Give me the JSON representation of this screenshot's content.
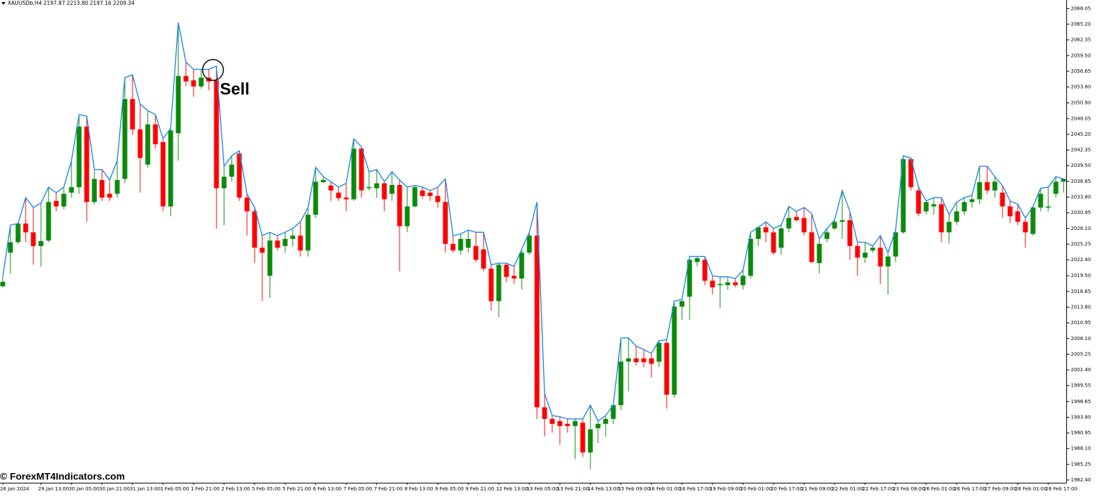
{
  "chart_data": {
    "type": "candlestick",
    "header": "XAUUSDb,H4  2197.87 2213.80 2197.16 2209.34",
    "annotation": "Sell",
    "watermark": "© ForexMT4Indicators.com",
    "up_color": "#0b8a0b",
    "down_color": "#ff0000",
    "line_color": "#1e88e5",
    "ylim": [
      1981.9,
      2069.6
    ],
    "yticks": [
      2068.05,
      {
        "value": 2065.2,
        "label": "2065.20"
      },
      2062.35,
      {
        "value": 2059.5,
        "label": "2059.50"
      },
      2056.65,
      {
        "value": 2053.8,
        "label": "2053.80"
      },
      {
        "value": 2050.9,
        "label": "2050.90"
      },
      2048.05,
      {
        "value": 2045.2,
        "label": "2045.20"
      },
      2042.35,
      {
        "value": 2039.5,
        "label": "2039.50"
      },
      2036.65,
      {
        "value": 2033.8,
        "label": "2033.80"
      },
      2030.95,
      {
        "value": 2028.1,
        "label": "2028.10"
      },
      2025.25,
      {
        "value": 2022.4,
        "label": "2022.40"
      },
      {
        "value": 2019.5,
        "label": "2019.50"
      },
      2016.65,
      {
        "value": 2013.8,
        "label": "2013.80"
      },
      2010.95,
      {
        "value": 2008.1,
        "label": "2008.10"
      },
      2005.25,
      {
        "value": 2002.4,
        "label": "2002.40"
      },
      1999.55,
      1996.65,
      {
        "value": 1993.8,
        "label": "1993.80"
      },
      1990.95,
      {
        "value": 1988.1,
        "label": "1988.10"
      },
      1985.25,
      {
        "value": 1982.4,
        "label": "1982.40"
      }
    ],
    "categories": [
      "26 Jan 2024",
      null,
      null,
      null,
      null,
      "29 Jan 13:00",
      null,
      null,
      null,
      "30 Jan 05:00",
      null,
      null,
      null,
      "30 Jan 21:00",
      null,
      null,
      null,
      "31 Jan 13:00",
      null,
      null,
      null,
      "1 Feb 05:00",
      null,
      null,
      null,
      "1 Feb 21:00",
      null,
      null,
      null,
      "2 Feb 13:00",
      null,
      null,
      null,
      "5 Feb 05:00",
      null,
      null,
      null,
      "5 Feb 21:00",
      null,
      null,
      null,
      "6 Feb 13:00",
      null,
      null,
      null,
      "7 Feb 05:00",
      null,
      null,
      null,
      "7 Feb 21:00",
      null,
      null,
      null,
      "8 Feb 13:00",
      null,
      null,
      null,
      "9 Feb 05:00",
      null,
      null,
      null,
      "9 Feb 21:00",
      null,
      null,
      null,
      "12 Feb 13:00",
      null,
      null,
      null,
      "13 Feb 05:00",
      null,
      null,
      null,
      "13 Feb 21:00",
      null,
      null,
      null,
      "14 Feb 13:00",
      null,
      null,
      null,
      "15 Feb 09:00",
      null,
      null,
      null,
      "16 Feb 01:00",
      null,
      null,
      null,
      "16 Feb 17:00",
      null,
      null,
      null,
      "19 Feb 09:00",
      null,
      null,
      null,
      "20 Feb 01:00",
      null,
      null,
      null,
      "20 Feb 17:00",
      null,
      null,
      null,
      "21 Feb 09:00",
      null,
      null,
      null,
      "22 Feb 01:00",
      null,
      null,
      null,
      "22 Feb 17:00",
      null,
      null,
      null,
      "23 Feb 09:00",
      null,
      null,
      null,
      "26 Feb 01:00",
      null,
      null,
      null,
      "26 Feb 17:00",
      null,
      null,
      null,
      "27 Feb 09:00",
      null,
      null,
      null,
      "28 Feb 01:00",
      null,
      null,
      null,
      "28 Feb 17:00",
      null,
      null
    ],
    "open": [
      2017.6,
      2023.7,
      2025.6,
      2029.0,
      2027.4,
      2024.9,
      2025.9,
      2033.1,
      2032.1,
      2034.6,
      2035.6,
      2046.6,
      2032.9,
      2036.9,
      2034.4,
      2034.4,
      2037.1,
      2051.6,
      2046.1,
      2039.7,
      2047.0,
      2043.8,
      2032.1,
      2045.4,
      2055.8,
      2055.0,
      2053.9,
      2055.5,
      2055.0,
      2035.4,
      2037.5,
      2041.7,
      2033.7,
      2031.2,
      2024.6,
      2019.5,
      2025.9,
      2024.9,
      2026.2,
      2026.8,
      2024.1,
      2030.6,
      2036.5,
      2035.9,
      2034.6,
      2033.7,
      2033.4,
      2042.6,
      2035.4,
      2035.4,
      2036.3,
      2034.4,
      2036.0,
      2028.5,
      2032.1,
      2035.0,
      2034.6,
      2034.0,
      2032.9,
      2025.3,
      2024.1,
      2024.6,
      2024.9,
      2024.3,
      2020.8,
      2014.9,
      2021.5,
      2019.5,
      2019.0,
      2023.7,
      2026.8,
      1995.6,
      1993.5,
      1993.1,
      1992.6,
      1992.2,
      1992.8,
      1987.4,
      1991.8,
      1992.6,
      1993.5,
      1996.0,
      2003.9,
      2004.5,
      2004.5,
      2004.5,
      2003.9,
      2007.3,
      1997.9,
      2013.9,
      2015.7,
      2022.0,
      2022.4,
      2018.6,
      2017.8,
      2017.8,
      2018.3,
      2017.8,
      2019.5,
      2026.2,
      2028.3,
      2027.4,
      2024.6,
      2028.1,
      2030.2,
      2030.0,
      2027.4,
      2021.8,
      2026.2,
      2028.1,
      2029.3,
      2029.6,
      2024.9,
      2022.8,
      2024.1,
      2024.6,
      2021.2,
      2023.0,
      2027.4,
      2040.7,
      2035.0,
      2031.2,
      2032.1,
      2032.5,
      2027.4,
      2029.3,
      2031.2,
      2032.9,
      2033.4,
      2036.5,
      2035.0,
      2034.6,
      2032.1,
      2031.2,
      2029.3,
      2027.1,
      2031.9,
      2031.9,
      2034.4,
      2036.6
    ],
    "high": [
      2019.3,
      2028.7,
      2029.0,
      2033.7,
      2031.9,
      2032.7,
      2035.6,
      2034.6,
      2035.6,
      2040.4,
      2048.8,
      2048.5,
      2038.8,
      2038.8,
      2036.9,
      2040.4,
      2055.5,
      2056.0,
      2050.7,
      2049.5,
      2048.8,
      2044.4,
      2046.3,
      2065.5,
      2058.3,
      2057.0,
      2057.0,
      2057.0,
      2057.6,
      2039.4,
      2041.3,
      2042.2,
      2034.4,
      2031.9,
      2026.8,
      2027.4,
      2026.8,
      2027.4,
      2028.1,
      2029.3,
      2031.9,
      2039.2,
      2037.5,
      2036.6,
      2035.6,
      2036.3,
      2044.4,
      2042.9,
      2038.4,
      2038.8,
      2036.6,
      2038.4,
      2036.9,
      2035.6,
      2035.9,
      2035.6,
      2035.0,
      2035.6,
      2037.1,
      2026.8,
      2027.1,
      2027.8,
      2027.4,
      2027.4,
      2021.5,
      2021.8,
      2021.8,
      2021.2,
      2024.3,
      2027.4,
      2032.9,
      1998.1,
      1994.1,
      1993.9,
      1993.5,
      1993.5,
      1993.5,
      1996.0,
      1993.1,
      1994.1,
      1996.0,
      2008.2,
      2008.2,
      2006.7,
      2006.1,
      2005.4,
      2007.7,
      2007.9,
      2014.9,
      2015.2,
      2023.0,
      2023.0,
      2023.0,
      2019.5,
      2019.3,
      2019.3,
      2019.0,
      2020.5,
      2027.4,
      2028.3,
      2029.3,
      2028.1,
      2028.7,
      2032.1,
      2031.2,
      2031.9,
      2030.8,
      2026.2,
      2028.1,
      2029.6,
      2035.0,
      2031.2,
      2025.6,
      2025.6,
      2024.9,
      2026.8,
      2023.7,
      2027.8,
      2041.3,
      2040.9,
      2035.6,
      2033.1,
      2033.7,
      2033.7,
      2030.6,
      2032.9,
      2033.7,
      2034.1,
      2039.4,
      2039.4,
      2037.5,
      2035.9,
      2033.1,
      2032.5,
      2030.0,
      2032.1,
      2035.4,
      2035.6,
      2037.5,
      2037.1
    ],
    "low": [
      2017.4,
      2019.9,
      2025.3,
      2025.6,
      2021.5,
      2021.2,
      2025.6,
      2031.2,
      2031.6,
      2033.7,
      2034.4,
      2029.3,
      2032.5,
      2033.1,
      2033.1,
      2033.7,
      2036.3,
      2045.1,
      2034.6,
      2039.2,
      2042.6,
      2031.2,
      2030.3,
      2040.4,
      2053.9,
      2052.0,
      2053.5,
      2053.2,
      2028.1,
      2028.7,
      2036.6,
      2033.1,
      2026.8,
      2021.8,
      2014.9,
      2015.5,
      2024.1,
      2023.7,
      2024.9,
      2023.0,
      2023.0,
      2030.0,
      2036.3,
      2033.1,
      2033.1,
      2031.2,
      2033.1,
      2033.7,
      2035.0,
      2033.7,
      2031.2,
      2033.1,
      2020.3,
      2027.4,
      2031.9,
      2033.5,
      2033.1,
      2031.9,
      2023.7,
      2023.7,
      2023.3,
      2023.7,
      2022.0,
      2020.3,
      2013.2,
      2012.0,
      2018.3,
      2018.0,
      2017.0,
      2023.3,
      1993.5,
      1990.3,
      1991.0,
      1988.8,
      1991.0,
      1986.2,
      1986.6,
      1984.3,
      1989.1,
      1990.3,
      1992.6,
      1995.1,
      1998.5,
      2003.2,
      2002.9,
      2001.0,
      2002.9,
      1995.4,
      1997.3,
      2011.5,
      2011.5,
      2021.2,
      2017.8,
      2016.1,
      2013.6,
      2017.0,
      2017.4,
      2017.0,
      2019.0,
      2024.9,
      2025.6,
      2023.3,
      2023.3,
      2027.4,
      2029.3,
      2026.8,
      2021.8,
      2019.9,
      2025.6,
      2027.8,
      2026.2,
      2022.4,
      2019.5,
      2021.8,
      2023.7,
      2018.0,
      2016.1,
      2022.0,
      2027.1,
      2035.0,
      2030.3,
      2030.6,
      2030.6,
      2025.6,
      2025.3,
      2028.7,
      2030.6,
      2031.9,
      2032.5,
      2034.4,
      2033.7,
      2030.0,
      2029.1,
      2028.7,
      2024.6,
      2026.8,
      2031.2,
      2031.2,
      2033.7,
      2034.6
    ],
    "close": [
      2018.4,
      2025.6,
      2029.0,
      2027.4,
      2024.9,
      2025.8,
      2032.9,
      2032.1,
      2034.4,
      2035.6,
      2046.6,
      2032.9,
      2037.1,
      2033.7,
      2033.7,
      2036.9,
      2051.6,
      2046.1,
      2040.9,
      2047.0,
      2043.4,
      2032.1,
      2045.9,
      2055.8,
      2054.8,
      2053.9,
      2055.5,
      2054.8,
      2035.4,
      2037.5,
      2039.7,
      2033.7,
      2031.2,
      2024.6,
      2023.7,
      2025.9,
      2024.6,
      2026.2,
      2026.8,
      2024.1,
      2030.6,
      2036.6,
      2036.9,
      2035.0,
      2033.6,
      2033.4,
      2042.6,
      2035.0,
      2035.6,
      2036.3,
      2033.4,
      2036.0,
      2028.5,
      2032.1,
      2035.6,
      2034.0,
      2034.0,
      2032.9,
      2025.3,
      2024.1,
      2026.2,
      2026.2,
      2022.4,
      2020.8,
      2014.9,
      2021.5,
      2019.3,
      2019.0,
      2023.7,
      2026.8,
      1995.6,
      1993.5,
      1992.6,
      1992.2,
      1992.2,
      1993.1,
      1987.4,
      1991.6,
      1992.6,
      1993.5,
      1996.0,
      2003.9,
      2004.5,
      2003.8,
      2003.8,
      2003.5,
      2007.3,
      1997.9,
      2013.9,
      2014.9,
      2022.4,
      2022.7,
      2018.6,
      2017.4,
      2018.0,
      2018.3,
      2017.8,
      2019.5,
      2026.2,
      2028.3,
      2027.4,
      2023.7,
      2028.1,
      2030.0,
      2029.6,
      2027.4,
      2022.0,
      2025.3,
      2027.4,
      2029.3,
      2029.6,
      2024.9,
      2022.8,
      2023.7,
      2024.6,
      2021.2,
      2023.0,
      2027.4,
      2040.7,
      2035.6,
      2030.8,
      2032.9,
      2032.5,
      2027.4,
      2029.3,
      2031.2,
      2032.9,
      2033.4,
      2036.5,
      2035.0,
      2036.6,
      2032.1,
      2030.3,
      2029.3,
      2027.4,
      2031.9,
      2034.4,
      2032.1,
      2036.6,
      2037.1
    ]
  }
}
